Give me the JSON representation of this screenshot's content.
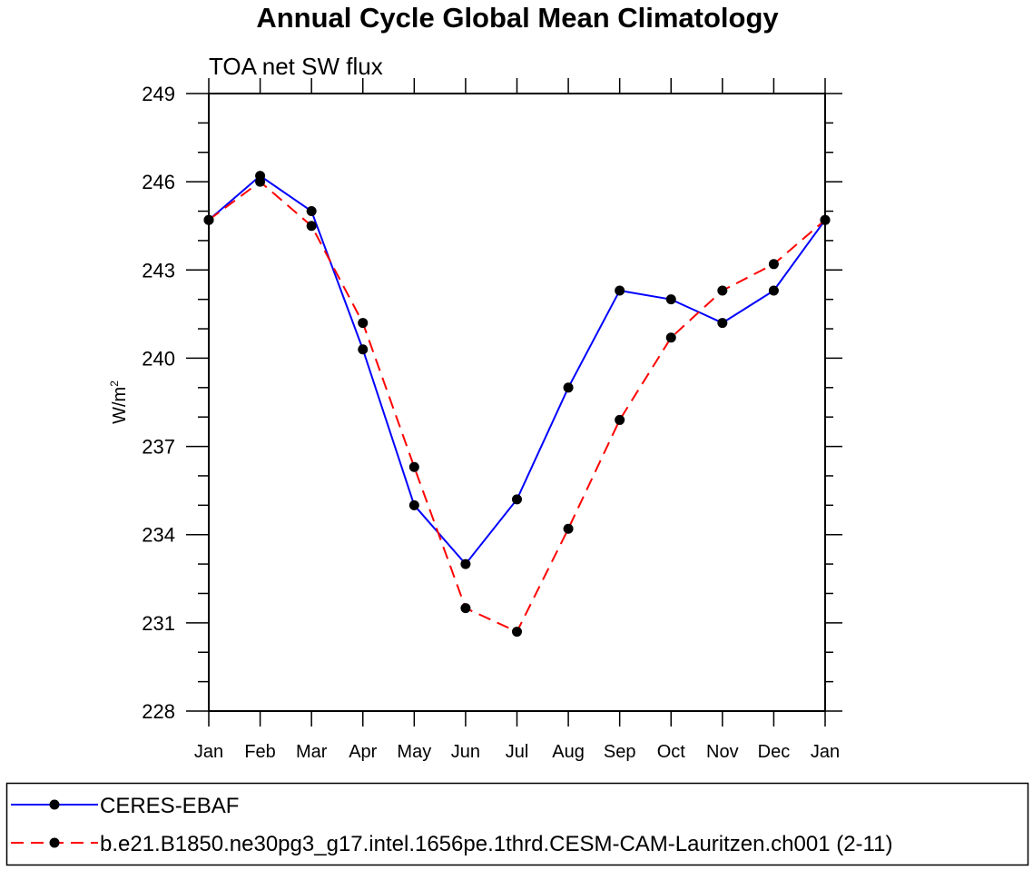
{
  "chart_data": {
    "type": "line",
    "title": "Annual Cycle Global Mean Climatology",
    "subtitle": "TOA net SW flux",
    "xlabel": "",
    "ylabel": "W/m",
    "ylabel_sup": "2",
    "categories": [
      "Jan",
      "Feb",
      "Mar",
      "Apr",
      "May",
      "Jun",
      "Jul",
      "Aug",
      "Sep",
      "Oct",
      "Nov",
      "Dec",
      "Jan"
    ],
    "ylim": [
      228,
      249
    ],
    "yticks": [
      228,
      231,
      234,
      237,
      240,
      243,
      246,
      249
    ],
    "grid": false,
    "legend_placement": "bottom",
    "series": [
      {
        "name": "CERES-EBAF",
        "color": "#0000ff",
        "dash": "solid",
        "marker": "filled-circle",
        "values": [
          244.7,
          246.2,
          245.0,
          240.3,
          235.0,
          233.0,
          235.2,
          239.0,
          242.3,
          242.0,
          241.2,
          242.3,
          244.7
        ]
      },
      {
        "name": "b.e21.B1850.ne30pg3_g17.intel.1656pe.1thrd.CESM-CAM-Lauritzen.ch001 (2-11)",
        "color": "#ff0000",
        "dash": "dashed",
        "marker": "filled-circle",
        "values": [
          244.7,
          246.0,
          244.5,
          241.2,
          236.3,
          231.5,
          230.7,
          234.2,
          237.9,
          240.7,
          242.3,
          243.2,
          244.7
        ]
      }
    ]
  }
}
